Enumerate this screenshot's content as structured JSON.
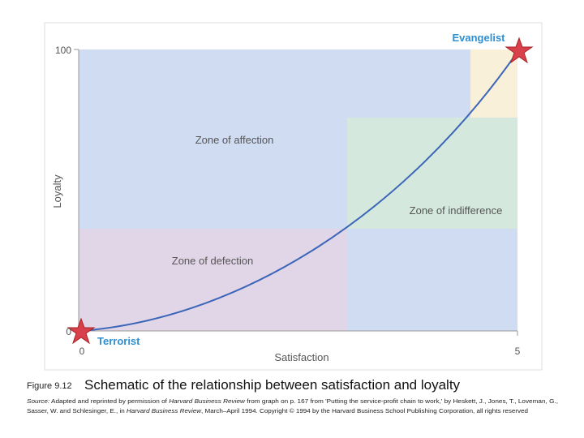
{
  "figure": {
    "axes": {
      "y_label": "Loyalty",
      "x_label": "Satisfaction",
      "y_ticks": [
        "100",
        "0"
      ],
      "x_ticks": [
        "0",
        "5"
      ]
    },
    "zones": [
      "Zone of affection",
      "Zone of indifference",
      "Zone of defection"
    ],
    "points": [
      "Evangelist",
      "Terrorist"
    ],
    "caption": {
      "number": "Figure 9.12",
      "title": "Schematic of the relationship between satisfaction and loyalty"
    },
    "source": [
      [
        "Source:",
        " Adapted and reprinted by permission of ",
        "Harvard Business Review",
        " from graph on p. 167 from 'Putting the service-profit chain to work,' by Heskett, J., Jones, T., Loveman, G.,"
      ],
      [
        "Sasser, W. and Schlesinger, E., in ",
        "Harvard Business Review",
        ", March–April 1994. Copyright © 1994 by the Harvard Business School Publishing Corporation, all rights reserved"
      ]
    ]
  }
}
